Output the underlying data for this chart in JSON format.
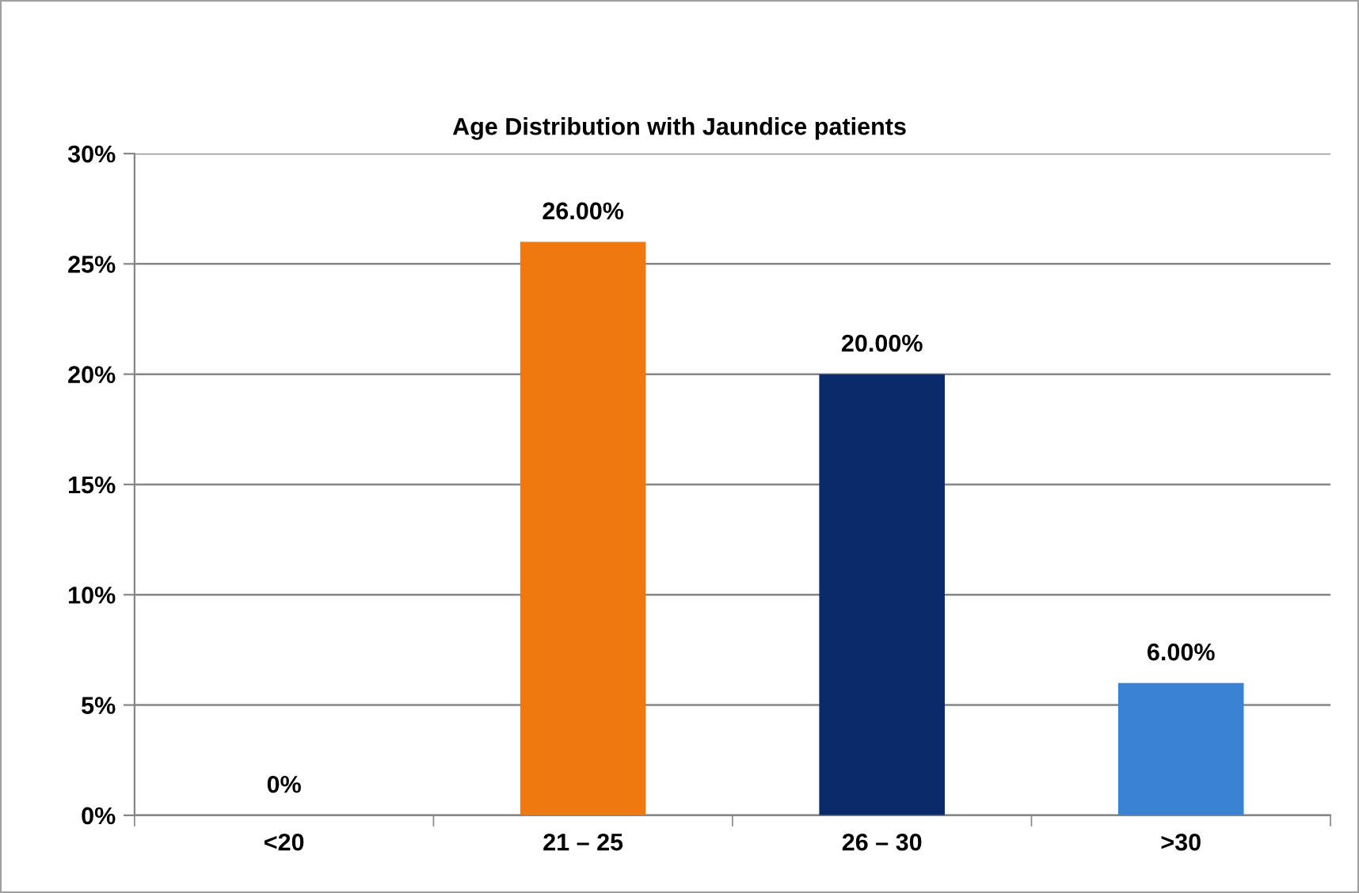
{
  "chart_data": {
    "type": "bar",
    "title": "Age Distribution with Jaundice patients",
    "categories": [
      "<20",
      "21 – 25",
      "26 – 30",
      ">30"
    ],
    "values": [
      0,
      26,
      20,
      6
    ],
    "colors": [
      "#f07810",
      "#f07810",
      "#0a2a6a",
      "#3a82d4"
    ],
    "value_labels": [
      "0%",
      "26.00%",
      "20.00%",
      "6.00%"
    ],
    "ylim": [
      0,
      30
    ],
    "yticks": [
      {
        "value": 0,
        "label": "0%"
      },
      {
        "value": 5,
        "label": "5%"
      },
      {
        "value": 10,
        "label": "10%"
      },
      {
        "value": 15,
        "label": "15%"
      },
      {
        "value": 20,
        "label": "20%"
      },
      {
        "value": 25,
        "label": "25%"
      },
      {
        "value": 30,
        "label": "30%"
      }
    ],
    "grid": "y",
    "legend": false
  }
}
